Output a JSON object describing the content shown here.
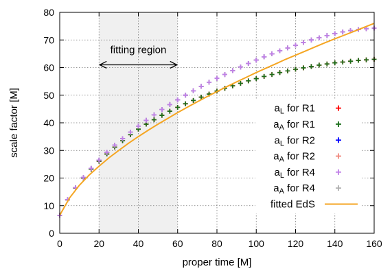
{
  "chart_data": {
    "type": "scatter",
    "xlabel": "proper time [M]",
    "ylabel": "scale factor [M]",
    "xlim": [
      0,
      160
    ],
    "ylim": [
      0,
      80
    ],
    "x_ticks": [
      0,
      20,
      40,
      60,
      80,
      100,
      120,
      140,
      160
    ],
    "y_ticks": [
      0,
      10,
      20,
      30,
      40,
      50,
      60,
      70,
      80
    ],
    "grid": true,
    "legend_position": "bottom-right",
    "annotations": {
      "fitting_region": {
        "label": "fitting region",
        "x_range": [
          20,
          60
        ],
        "arrow_y": 61
      }
    },
    "series": [
      {
        "name": "a_L for R1",
        "label_main": "a",
        "label_sub": "L",
        "label_rest": " for R1",
        "color": "#ff0000",
        "marker": "plus",
        "x": [
          0,
          4,
          8,
          12,
          16,
          20,
          24,
          28,
          32,
          36,
          40,
          44,
          48,
          52,
          56,
          60,
          64,
          68,
          72,
          76,
          80,
          84,
          88,
          92,
          96,
          100,
          104,
          108,
          112,
          116,
          120,
          124,
          128,
          132,
          136,
          140,
          144,
          148,
          152,
          156,
          160
        ],
        "y": [
          6.5,
          12.1,
          16.4,
          20.0,
          23.2,
          26.1,
          28.7,
          31.2,
          33.5,
          35.7,
          37.7,
          39.5,
          41.1,
          42.7,
          44.2,
          45.6,
          46.9,
          48.1,
          49.3,
          50.4,
          51.5,
          52.5,
          53.4,
          54.3,
          55.2,
          56.0,
          56.8,
          57.5,
          58.2,
          58.8,
          59.4,
          59.9,
          60.4,
          60.9,
          61.3,
          61.7,
          62.0,
          62.3,
          62.6,
          62.8,
          63.0
        ]
      },
      {
        "name": "a_A for R1",
        "label_main": "a",
        "label_sub": "A",
        "label_rest": " for R1",
        "color": "#1a6e1a",
        "marker": "plus",
        "x": [
          0,
          4,
          8,
          12,
          16,
          20,
          24,
          28,
          32,
          36,
          40,
          44,
          48,
          52,
          56,
          60,
          64,
          68,
          72,
          76,
          80,
          84,
          88,
          92,
          96,
          100,
          104,
          108,
          112,
          116,
          120,
          124,
          128,
          132,
          136,
          140,
          144,
          148,
          152,
          156,
          160
        ],
        "y": [
          6.5,
          12.1,
          16.4,
          20.0,
          23.2,
          26.1,
          28.7,
          31.2,
          33.5,
          35.7,
          37.7,
          39.5,
          41.1,
          42.7,
          44.2,
          45.6,
          46.9,
          48.1,
          49.3,
          50.4,
          51.5,
          52.5,
          53.4,
          54.3,
          55.2,
          56.0,
          56.8,
          57.5,
          58.2,
          58.8,
          59.4,
          59.9,
          60.4,
          60.9,
          61.3,
          61.7,
          62.0,
          62.3,
          62.6,
          62.8,
          63.0
        ]
      },
      {
        "name": "a_L for R2",
        "label_main": "a",
        "label_sub": "L",
        "label_rest": " for R2",
        "color": "#0000ff",
        "marker": "plus",
        "x": [
          0,
          4,
          8,
          12,
          16,
          20,
          24,
          28,
          32,
          36,
          40,
          44,
          48,
          52,
          56,
          60,
          64,
          68,
          72,
          76,
          80,
          84,
          88,
          92,
          96,
          100,
          104,
          108,
          112,
          116,
          120,
          124,
          128,
          132,
          136,
          140,
          144,
          148,
          152,
          156,
          160
        ],
        "y": [
          6.5,
          12.2,
          16.5,
          20.2,
          23.5,
          26.5,
          29.3,
          31.9,
          34.3,
          36.6,
          38.8,
          40.9,
          42.9,
          44.8,
          46.6,
          48.3,
          50.0,
          51.6,
          53.2,
          54.7,
          56.1,
          57.5,
          58.9,
          60.2,
          61.5,
          62.7,
          63.9,
          65.0,
          66.1,
          67.1,
          68.1,
          69.1,
          70.0,
          70.8,
          71.6,
          72.3,
          72.9,
          73.4,
          73.8,
          74.1,
          74.3
        ]
      },
      {
        "name": "a_A for R2",
        "label_main": "a",
        "label_sub": "A",
        "label_rest": " for R2",
        "color": "#f08a80",
        "marker": "plus",
        "x": [
          0,
          4,
          8,
          12,
          16,
          20,
          24,
          28,
          32,
          36,
          40,
          44,
          48,
          52,
          56,
          60,
          64,
          68,
          72,
          76,
          80,
          84,
          88,
          92,
          96,
          100,
          104,
          108,
          112,
          116,
          120,
          124,
          128,
          132,
          136,
          140,
          144,
          148,
          152,
          156,
          160
        ],
        "y": [
          6.5,
          12.2,
          16.5,
          20.2,
          23.5,
          26.5,
          29.3,
          31.9,
          34.3,
          36.6,
          38.8,
          40.9,
          42.9,
          44.8,
          46.6,
          48.3,
          50.0,
          51.6,
          53.2,
          54.7,
          56.1,
          57.5,
          58.9,
          60.2,
          61.5,
          62.7,
          63.9,
          65.0,
          66.1,
          67.1,
          68.1,
          69.1,
          70.0,
          70.8,
          71.6,
          72.3,
          72.9,
          73.4,
          73.8,
          74.1,
          74.3
        ]
      },
      {
        "name": "a_L for R4",
        "label_main": "a",
        "label_sub": "L",
        "label_rest": " for R4",
        "color": "#c080e8",
        "marker": "plus",
        "x": [
          0,
          4,
          8,
          12,
          16,
          20,
          24,
          28,
          32,
          36,
          40,
          44,
          48,
          52,
          56,
          60,
          64,
          68,
          72,
          76,
          80,
          84,
          88,
          92,
          96,
          100,
          104,
          108,
          112,
          116,
          120,
          124,
          128,
          132,
          136,
          140,
          144,
          148,
          152,
          156,
          160
        ],
        "y": [
          6.5,
          12.2,
          16.5,
          20.2,
          23.5,
          26.5,
          29.3,
          31.9,
          34.3,
          36.6,
          38.8,
          40.9,
          42.9,
          44.8,
          46.6,
          48.3,
          50.0,
          51.6,
          53.2,
          54.7,
          56.1,
          57.5,
          58.9,
          60.2,
          61.5,
          62.7,
          63.9,
          65.0,
          66.1,
          67.1,
          68.1,
          69.1,
          70.0,
          70.8,
          71.6,
          72.3,
          72.9,
          73.4,
          73.8,
          74.1,
          74.3
        ]
      },
      {
        "name": "a_A for R4",
        "label_main": "a",
        "label_sub": "A",
        "label_rest": " for R4",
        "color": "#b0b0b0",
        "marker": "plus",
        "x": [
          0,
          4,
          8,
          12,
          16,
          20,
          24,
          28,
          32,
          36,
          40,
          44,
          48,
          52,
          56,
          60,
          64,
          68,
          72,
          76,
          80,
          84,
          88,
          92,
          96,
          100,
          104,
          108,
          112,
          116,
          120,
          124,
          128,
          132,
          136,
          140,
          144,
          148,
          152,
          156,
          160
        ],
        "y": [
          6.5,
          12.2,
          16.5,
          20.2,
          23.5,
          26.5,
          29.3,
          31.9,
          34.3,
          36.6,
          38.8,
          40.9,
          42.9,
          44.8,
          46.6,
          48.3,
          50.0,
          51.6,
          53.2,
          54.7,
          56.1,
          57.5,
          58.9,
          60.2,
          61.5,
          62.7,
          63.9,
          65.0,
          66.1,
          67.1,
          68.1,
          69.1,
          70.0,
          70.8,
          71.6,
          72.3,
          72.9,
          73.4,
          73.8,
          74.1,
          74.3
        ]
      },
      {
        "name": "fitted EdS",
        "label_main": "fitted EdS",
        "label_sub": "",
        "label_rest": "",
        "color": "#f5a623",
        "marker": "line",
        "x": [
          0,
          5,
          10,
          15,
          20,
          25,
          30,
          35,
          40,
          45,
          50,
          55,
          60,
          65,
          70,
          75,
          80,
          85,
          90,
          95,
          100,
          105,
          110,
          115,
          120,
          125,
          130,
          135,
          140,
          145,
          150,
          155,
          160
        ],
        "y": [
          6.5,
          12.8,
          17.4,
          21.1,
          24.3,
          27.3,
          30.0,
          32.6,
          35.0,
          37.3,
          39.5,
          41.6,
          43.7,
          45.7,
          47.6,
          49.5,
          51.3,
          53.1,
          54.8,
          56.5,
          58.2,
          59.8,
          61.4,
          63.0,
          64.5,
          66.0,
          67.5,
          69.0,
          70.4,
          71.8,
          73.2,
          74.6,
          76.0
        ]
      }
    ]
  }
}
